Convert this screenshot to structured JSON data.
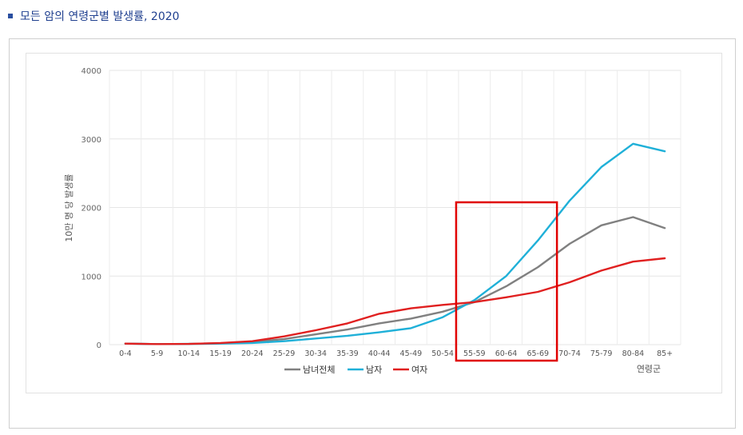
{
  "page": {
    "heading": "모든 암의 연령군별 발생률, 2020",
    "accent_color": "#2a4fa0"
  },
  "chart_data": {
    "type": "line",
    "title": "",
    "xlabel": "연령군",
    "ylabel": "10만 명 당 발생률",
    "ylim": [
      0,
      4000
    ],
    "yticks": [
      0,
      1000,
      2000,
      3000,
      4000
    ],
    "grid": true,
    "legend_position": "bottom",
    "categories": [
      "0-4",
      "5-9",
      "10-14",
      "15-19",
      "20-24",
      "25-29",
      "30-34",
      "35-39",
      "40-44",
      "45-49",
      "50-54",
      "55-59",
      "60-64",
      "65-69",
      "70-74",
      "75-79",
      "80-84",
      "85+"
    ],
    "series": [
      {
        "name": "남녀전체",
        "color": "#808080",
        "values": [
          15,
          8,
          10,
          20,
          40,
          80,
          150,
          220,
          310,
          380,
          480,
          620,
          850,
          1130,
          1470,
          1740,
          1860,
          1700
        ]
      },
      {
        "name": "남자",
        "color": "#1fb0d8",
        "values": [
          15,
          8,
          10,
          15,
          25,
          50,
          90,
          130,
          180,
          240,
          400,
          650,
          1000,
          1520,
          2100,
          2590,
          2930,
          2820
        ]
      },
      {
        "name": "여자",
        "color": "#e02020",
        "values": [
          15,
          8,
          10,
          25,
          50,
          120,
          210,
          310,
          450,
          530,
          580,
          620,
          690,
          770,
          910,
          1080,
          1210,
          1260
        ]
      }
    ],
    "highlight": {
      "from": "55-59",
      "to": "65-69",
      "color": "#e00000"
    }
  }
}
